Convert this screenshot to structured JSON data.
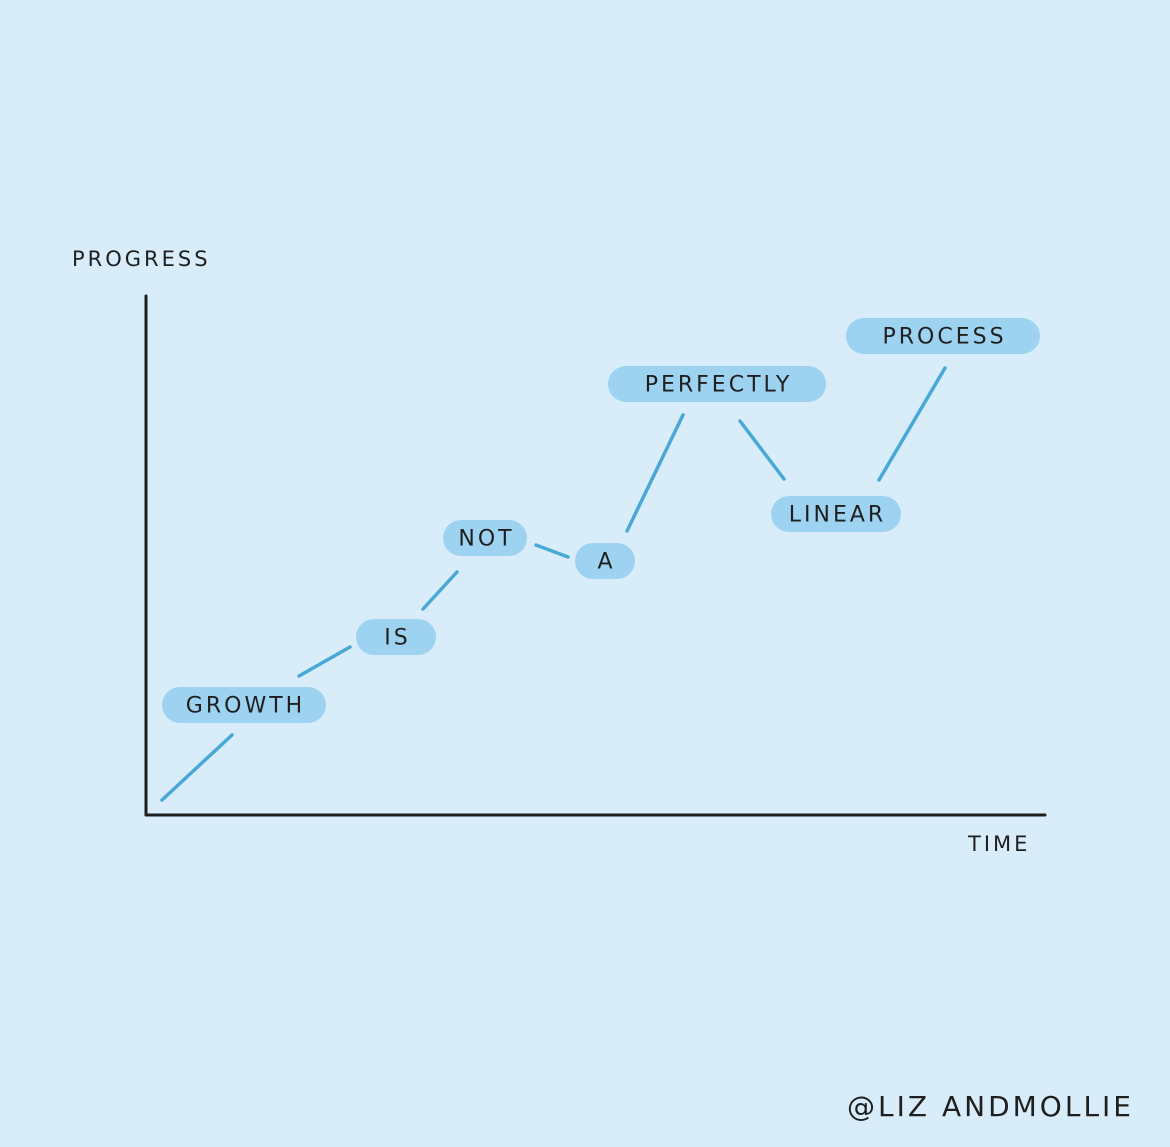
{
  "chart_data": {
    "type": "line",
    "ylabel": "PROGRESS",
    "xlabel": "TIME",
    "grid": false,
    "points": [
      {
        "label": "GROWTH",
        "x": 1,
        "y": 1
      },
      {
        "label": "IS",
        "x": 2,
        "y": 2
      },
      {
        "label": "NOT",
        "x": 3,
        "y": 3
      },
      {
        "label": "A",
        "x": 4,
        "y": 2.8
      },
      {
        "label": "PERFECTLY",
        "x": 5,
        "y": 4.5
      },
      {
        "label": "LINEAR",
        "x": 6,
        "y": 3.6
      },
      {
        "label": "PROCESS",
        "x": 7,
        "y": 4.8
      }
    ]
  },
  "credit": "@LIZ ANDMOLLIE",
  "colors": {
    "background": "#d8edf9",
    "pill": "#9ed2f1",
    "line": "#4aa8d6",
    "axis": "#1e1e1e"
  }
}
